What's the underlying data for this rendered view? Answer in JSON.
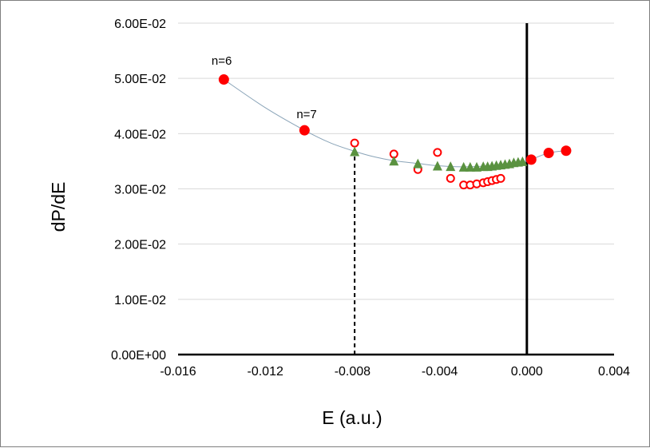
{
  "chart_data": {
    "type": "scatter",
    "xlabel": "E (a.u.)",
    "ylabel": "dP/dE",
    "xlim": [
      -0.016,
      0.004
    ],
    "ylim": [
      0,
      0.06
    ],
    "x_ticks": [
      "-0.016",
      "-0.012",
      "-0.008",
      "-0.004",
      "0.000",
      "0.004"
    ],
    "y_ticks": [
      "0.00E+00",
      "1.00E-02",
      "2.00E-02",
      "3.00E-02",
      "4.00E-02",
      "5.00E-02",
      "6.00E-02"
    ],
    "grid": "horizontal",
    "legend": "none",
    "annotations": [
      {
        "text": "n=6",
        "x": -0.014,
        "y": 0.0525
      },
      {
        "text": "n=7",
        "x": -0.0101,
        "y": 0.0428
      }
    ],
    "vertical_lines": [
      {
        "x": -0.0079,
        "style": "dashed",
        "ymax": 0.0378
      },
      {
        "x": 0.0,
        "style": "solid",
        "ymax": 0.06
      }
    ],
    "series": [
      {
        "marker": "filled-circle",
        "color": "#ff0000",
        "points": [
          [
            -0.0139,
            0.0498
          ],
          [
            -0.0102,
            0.0406
          ],
          [
            0.0002,
            0.0353
          ],
          [
            0.001,
            0.0365
          ],
          [
            0.0018,
            0.0369
          ]
        ]
      },
      {
        "marker": "open-circle",
        "color": "#ff0000",
        "points": [
          [
            -0.0079,
            0.0383
          ],
          [
            -0.0061,
            0.0363
          ],
          [
            -0.005,
            0.0335
          ],
          [
            -0.0041,
            0.0366
          ],
          [
            -0.0035,
            0.0319
          ],
          [
            -0.0029,
            0.0307
          ],
          [
            -0.0026,
            0.0307
          ],
          [
            -0.0023,
            0.0309
          ],
          [
            -0.002,
            0.0311
          ],
          [
            -0.0018,
            0.0313
          ],
          [
            -0.0016,
            0.0315
          ],
          [
            -0.0014,
            0.0317
          ],
          [
            -0.0012,
            0.0319
          ]
        ]
      },
      {
        "marker": "filled-triangle",
        "color": "#5a9240",
        "points": [
          [
            -0.0079,
            0.0368
          ],
          [
            -0.0061,
            0.0351
          ],
          [
            -0.005,
            0.0346
          ],
          [
            -0.0041,
            0.0342
          ],
          [
            -0.0035,
            0.0341
          ],
          [
            -0.0029,
            0.034
          ],
          [
            -0.0026,
            0.034
          ],
          [
            -0.0023,
            0.034
          ],
          [
            -0.002,
            0.0341
          ],
          [
            -0.0018,
            0.0341
          ],
          [
            -0.0016,
            0.0342
          ],
          [
            -0.0014,
            0.0343
          ],
          [
            -0.0012,
            0.0344
          ],
          [
            -0.001,
            0.0345
          ],
          [
            -0.0008,
            0.0346
          ],
          [
            -0.0006,
            0.0348
          ],
          [
            -0.0004,
            0.0349
          ],
          [
            -0.0002,
            0.035
          ]
        ]
      },
      {
        "marker": "line",
        "color": "#8aa4b8",
        "points": [
          [
            -0.0139,
            0.0498
          ],
          [
            -0.012,
            0.0447
          ],
          [
            -0.0102,
            0.0406
          ],
          [
            -0.009,
            0.0383
          ],
          [
            -0.0079,
            0.0368
          ],
          [
            -0.007,
            0.0358
          ],
          [
            -0.0061,
            0.0351
          ],
          [
            -0.005,
            0.0346
          ],
          [
            -0.0041,
            0.0342
          ],
          [
            -0.003,
            0.034
          ],
          [
            -0.002,
            0.0341
          ],
          [
            -0.001,
            0.0345
          ],
          [
            0.0,
            0.035
          ],
          [
            0.0002,
            0.0353
          ],
          [
            0.001,
            0.0365
          ],
          [
            0.0018,
            0.0369
          ]
        ]
      }
    ]
  }
}
